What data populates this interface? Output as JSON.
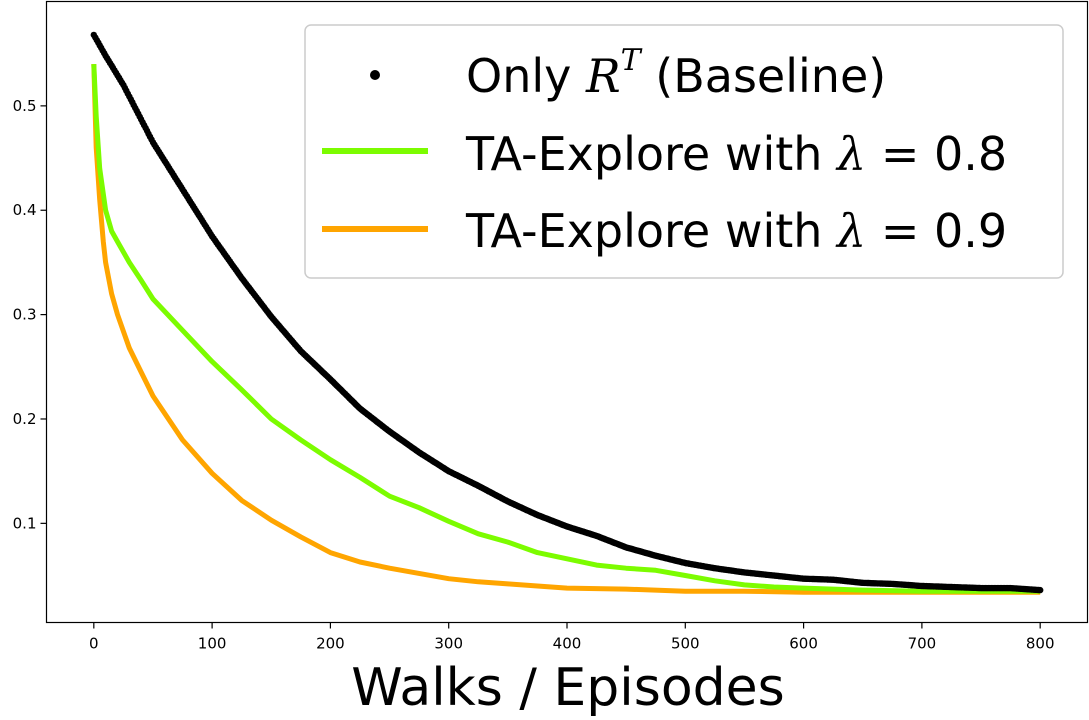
{
  "chart_data": {
    "type": "line",
    "xlabel": "Walks / Episodes",
    "ylabel": "",
    "xlim": [
      -40,
      840
    ],
    "ylim": [
      0.005,
      0.6
    ],
    "xticks": [
      0,
      100,
      200,
      300,
      400,
      500,
      600,
      700,
      800
    ],
    "yticks": [
      0.1,
      0.2,
      0.3,
      0.4,
      0.5
    ],
    "grid": false,
    "legend_position": "top-right",
    "series": [
      {
        "name": "Only R^T (Baseline)",
        "legend": {
          "prefix": "Only ",
          "var": "R",
          "sup": "T",
          "suffix": " (Baseline)"
        },
        "style": "markers",
        "color": "#000000",
        "x": [
          0,
          10,
          25,
          50,
          75,
          100,
          125,
          150,
          175,
          200,
          225,
          250,
          275,
          300,
          325,
          350,
          375,
          400,
          425,
          450,
          475,
          500,
          525,
          550,
          575,
          600,
          625,
          650,
          675,
          700,
          725,
          750,
          775,
          800
        ],
        "y": [
          0.568,
          0.548,
          0.52,
          0.465,
          0.42,
          0.375,
          0.335,
          0.298,
          0.265,
          0.238,
          0.21,
          0.188,
          0.168,
          0.15,
          0.136,
          0.121,
          0.108,
          0.097,
          0.088,
          0.077,
          0.069,
          0.062,
          0.057,
          0.053,
          0.05,
          0.047,
          0.046,
          0.043,
          0.042,
          0.04,
          0.039,
          0.038,
          0.038,
          0.036
        ]
      },
      {
        "name": "TA-Explore with λ = 0.8",
        "legend": {
          "prefix": "TA-Explore with ",
          "var": "λ",
          "suffix": " = 0.8"
        },
        "style": "line",
        "color": "#7cfc00",
        "x": [
          0,
          2,
          5,
          10,
          15,
          20,
          30,
          40,
          50,
          75,
          100,
          125,
          150,
          175,
          200,
          225,
          250,
          275,
          300,
          325,
          350,
          375,
          400,
          425,
          450,
          475,
          500,
          525,
          550,
          575,
          600,
          650,
          700,
          750,
          800
        ],
        "y": [
          0.54,
          0.49,
          0.44,
          0.4,
          0.38,
          0.37,
          0.35,
          0.333,
          0.315,
          0.285,
          0.255,
          0.228,
          0.2,
          0.18,
          0.161,
          0.144,
          0.126,
          0.115,
          0.102,
          0.09,
          0.082,
          0.072,
          0.066,
          0.06,
          0.057,
          0.055,
          0.05,
          0.045,
          0.041,
          0.039,
          0.038,
          0.036,
          0.035,
          0.035,
          0.035
        ]
      },
      {
        "name": "TA-Explore with λ = 0.9",
        "legend": {
          "prefix": "TA-Explore with ",
          "var": "λ",
          "suffix": " = 0.9"
        },
        "style": "line",
        "color": "#ffa500",
        "x": [
          0,
          2,
          5,
          8,
          10,
          15,
          20,
          30,
          40,
          50,
          75,
          100,
          125,
          150,
          175,
          200,
          225,
          250,
          275,
          300,
          325,
          350,
          375,
          400,
          450,
          500,
          550,
          600,
          650,
          700,
          750,
          800
        ],
        "y": [
          0.54,
          0.46,
          0.41,
          0.37,
          0.35,
          0.32,
          0.3,
          0.268,
          0.245,
          0.222,
          0.18,
          0.148,
          0.122,
          0.103,
          0.087,
          0.072,
          0.063,
          0.057,
          0.052,
          0.047,
          0.044,
          0.042,
          0.04,
          0.038,
          0.037,
          0.035,
          0.035,
          0.034,
          0.034,
          0.034,
          0.034,
          0.034
        ]
      }
    ]
  }
}
